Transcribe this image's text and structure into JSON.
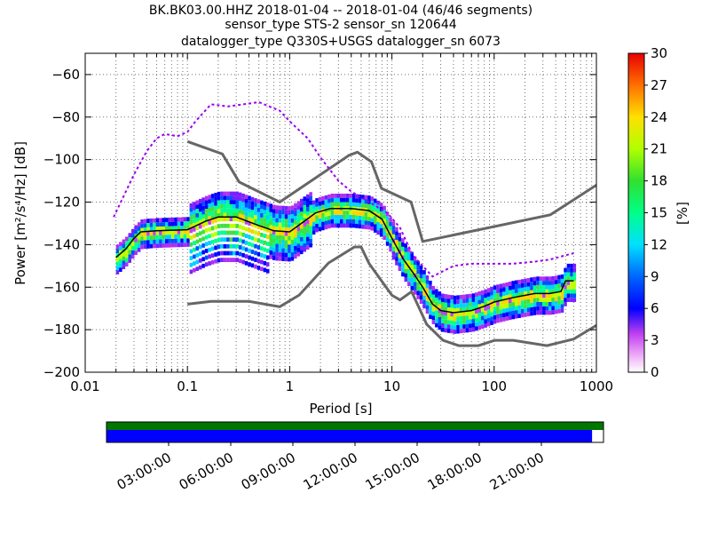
{
  "chart_data": {
    "type": "heatmap",
    "title_lines": [
      "BK.BK03.00.HHZ   2018-01-04 -- 2018-01-04  (46/46 segments)",
      "sensor_type STS-2 sensor_sn 120644",
      "datalogger_type Q330S+USGS datalogger_sn 6073"
    ],
    "xlabel": "Period [s]",
    "ylabel": "Power [m²/s⁴/Hz] [dB]",
    "x_scale": "log",
    "xlim": [
      0.01,
      1000
    ],
    "ylim": [
      -200,
      -50
    ],
    "x_ticks": [
      {
        "v": 0.01,
        "label": "0.01"
      },
      {
        "v": 0.1,
        "label": "0.1"
      },
      {
        "v": 1,
        "label": "1"
      },
      {
        "v": 10,
        "label": "10"
      },
      {
        "v": 100,
        "label": "100"
      },
      {
        "v": 1000,
        "label": "1000"
      }
    ],
    "y_ticks": [
      {
        "v": -60,
        "label": "−60"
      },
      {
        "v": -80,
        "label": "−80"
      },
      {
        "v": -100,
        "label": "−100"
      },
      {
        "v": -120,
        "label": "−120"
      },
      {
        "v": -140,
        "label": "−140"
      },
      {
        "v": -160,
        "label": "−160"
      },
      {
        "v": -180,
        "label": "−180"
      },
      {
        "v": -200,
        "label": "−200"
      }
    ],
    "grid": true,
    "colorbar": {
      "label": "[%]",
      "range": [
        0,
        30
      ],
      "ticks": [
        {
          "v": 0,
          "label": "0"
        },
        {
          "v": 3,
          "label": "3"
        },
        {
          "v": 6,
          "label": "6"
        },
        {
          "v": 9,
          "label": "9"
        },
        {
          "v": 12,
          "label": "12"
        },
        {
          "v": 15,
          "label": "15"
        },
        {
          "v": 18,
          "label": "18"
        },
        {
          "v": 21,
          "label": "21"
        },
        {
          "v": 24,
          "label": "24"
        },
        {
          "v": 27,
          "label": "27"
        },
        {
          "v": 30,
          "label": "30"
        }
      ]
    },
    "noise_models": [
      {
        "name": "high",
        "color": "#666666",
        "points": [
          [
            0.1,
            -91.5
          ],
          [
            0.22,
            -97.4
          ],
          [
            0.32,
            -110.5
          ],
          [
            0.8,
            -120
          ],
          [
            3.8,
            -98
          ],
          [
            4.6,
            -96.5
          ],
          [
            6.3,
            -101
          ],
          [
            7.9,
            -113.5
          ],
          [
            15.4,
            -120
          ],
          [
            20,
            -138.5
          ],
          [
            354,
            -126
          ],
          [
            1000,
            -112
          ]
        ]
      },
      {
        "name": "low",
        "color": "#666666",
        "points": [
          [
            0.1,
            -168
          ],
          [
            0.17,
            -166.7
          ],
          [
            0.4,
            -166.7
          ],
          [
            0.8,
            -169.2
          ],
          [
            1.24,
            -163.7
          ],
          [
            2.4,
            -148.6
          ],
          [
            4.3,
            -141.1
          ],
          [
            5,
            -141.1
          ],
          [
            6,
            -149
          ],
          [
            10,
            -163.8
          ],
          [
            12,
            -166
          ],
          [
            15.6,
            -162.1
          ],
          [
            21.9,
            -177.5
          ],
          [
            31.6,
            -185
          ],
          [
            45,
            -187.5
          ],
          [
            70,
            -187.5
          ],
          [
            101,
            -185
          ],
          [
            154,
            -185
          ],
          [
            328,
            -187.5
          ],
          [
            600,
            -184.4
          ],
          [
            1000,
            -178
          ]
        ]
      },
      {
        "name": "max_envelope",
        "color": "#9900ee",
        "points": [
          [
            0.019,
            -127
          ],
          [
            0.03,
            -107
          ],
          [
            0.04,
            -96
          ],
          [
            0.05,
            -90
          ],
          [
            0.06,
            -88
          ],
          [
            0.08,
            -89
          ],
          [
            0.1,
            -87
          ],
          [
            0.12,
            -82
          ],
          [
            0.17,
            -74
          ],
          [
            0.25,
            -75
          ],
          [
            0.5,
            -73
          ],
          [
            0.8,
            -77
          ],
          [
            1.0,
            -82
          ],
          [
            1.5,
            -90
          ],
          [
            2.0,
            -99
          ],
          [
            3,
            -110
          ],
          [
            4,
            -115
          ],
          [
            6,
            -120
          ],
          [
            9,
            -125
          ],
          [
            12,
            -132
          ],
          [
            16,
            -145
          ],
          [
            25,
            -155
          ],
          [
            40,
            -150
          ],
          [
            60,
            -149
          ],
          [
            150,
            -149
          ],
          [
            250,
            -148
          ],
          [
            350,
            -147
          ],
          [
            500,
            -145
          ],
          [
            600,
            -144
          ]
        ]
      },
      {
        "name": "mean",
        "color": "#000000",
        "points": [
          [
            0.02,
            -146
          ],
          [
            0.025,
            -142
          ],
          [
            0.03,
            -137
          ],
          [
            0.035,
            -134
          ],
          [
            0.05,
            -133.5
          ],
          [
            0.1,
            -133
          ],
          [
            0.15,
            -129
          ],
          [
            0.2,
            -127
          ],
          [
            0.3,
            -127
          ],
          [
            0.5,
            -131
          ],
          [
            0.7,
            -133.5
          ],
          [
            1.0,
            -134
          ],
          [
            1.3,
            -130
          ],
          [
            1.8,
            -125
          ],
          [
            2.5,
            -123
          ],
          [
            4,
            -123
          ],
          [
            6,
            -124
          ],
          [
            8,
            -128
          ],
          [
            10,
            -137
          ],
          [
            13,
            -147
          ],
          [
            16,
            -153
          ],
          [
            20,
            -160
          ],
          [
            25,
            -168
          ],
          [
            30,
            -171
          ],
          [
            40,
            -172
          ],
          [
            60,
            -171
          ],
          [
            80,
            -169
          ],
          [
            100,
            -167
          ],
          [
            150,
            -165
          ],
          [
            250,
            -163
          ],
          [
            350,
            -163
          ],
          [
            450,
            -162
          ],
          [
            500,
            -157
          ],
          [
            600,
            -157
          ]
        ]
      }
    ],
    "timeline": {
      "labels": [
        "03:00:00",
        "06:00:00",
        "09:00:00",
        "12:00:00",
        "15:00:00",
        "18:00:00",
        "21:00:00"
      ],
      "colors": {
        "top": "#007700",
        "bottom": "#0000ff"
      },
      "coverage_fraction": 0.977
    }
  }
}
